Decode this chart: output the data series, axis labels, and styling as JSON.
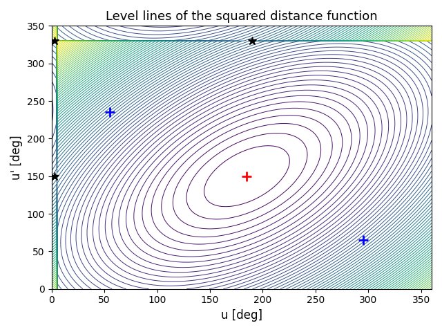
{
  "title": "Level lines of the squared distance function",
  "xlabel": "u [deg]",
  "ylabel": "u' [deg]",
  "xlim": [
    0,
    360
  ],
  "ylim": [
    0,
    350
  ],
  "xticks": [
    0,
    50,
    100,
    150,
    200,
    250,
    300,
    350
  ],
  "yticks": [
    0,
    50,
    100,
    150,
    200,
    250,
    300,
    350
  ],
  "minimum": [
    185,
    150
  ],
  "blue_plus_1": [
    55,
    235
  ],
  "blue_plus_2": [
    295,
    65
  ],
  "black_star_1": [
    3,
    330
  ],
  "black_star_2": [
    190,
    330
  ],
  "black_star_3": [
    3,
    150
  ],
  "colormap": "viridis",
  "n_levels": 80,
  "figsize": [
    6.4,
    4.8
  ],
  "dpi": 100
}
